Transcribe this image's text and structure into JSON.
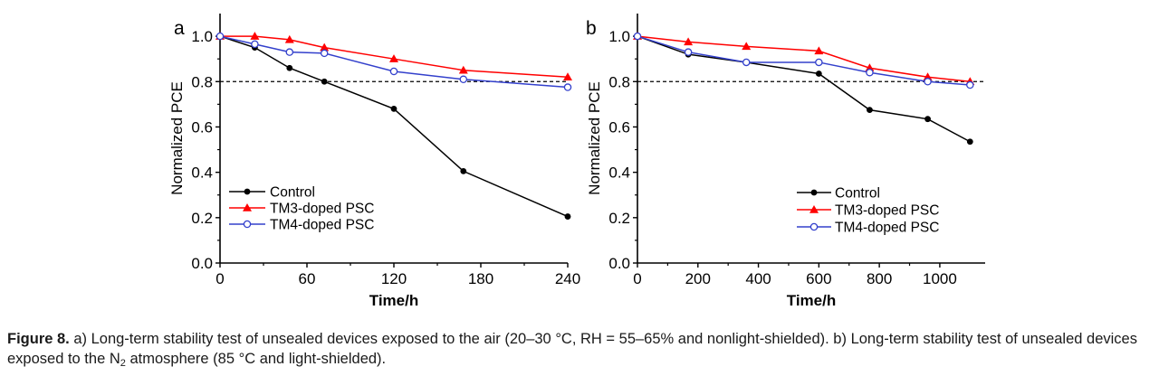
{
  "chart_data": [
    {
      "panel_label": "a",
      "type": "line",
      "xlabel": "Time/h",
      "ylabel": "Normalized PCE",
      "xlim": [
        0,
        240
      ],
      "ylim": [
        0.0,
        1.1
      ],
      "xticks": [
        0,
        60,
        120,
        180,
        240
      ],
      "yticks": [
        0.0,
        0.2,
        0.4,
        0.6,
        0.8,
        1.0
      ],
      "ytick_labels": [
        "0.0",
        "0.2",
        "0.4",
        "0.6",
        "0.8",
        "1.0"
      ],
      "reference_line": 0.8,
      "legend_position": "bottom-left",
      "series": [
        {
          "name": "Control",
          "color": "#000000",
          "marker": "filled-circle",
          "x": [
            0,
            24,
            48,
            72,
            120,
            168,
            240
          ],
          "y": [
            1.0,
            0.95,
            0.86,
            0.8,
            0.68,
            0.405,
            0.205
          ]
        },
        {
          "name": "TM3-doped PSC",
          "color": "#ff0000",
          "marker": "filled-triangle",
          "x": [
            0,
            24,
            48,
            72,
            120,
            168,
            240
          ],
          "y": [
            1.0,
            1.0,
            0.985,
            0.95,
            0.9,
            0.85,
            0.82
          ]
        },
        {
          "name": "TM4-doped PSC",
          "color": "#3340cc",
          "marker": "open-circle",
          "x": [
            0,
            24,
            48,
            72,
            120,
            168,
            240
          ],
          "y": [
            1.0,
            0.965,
            0.93,
            0.925,
            0.845,
            0.81,
            0.775
          ]
        }
      ]
    },
    {
      "panel_label": "b",
      "type": "line",
      "xlabel": "Time/h",
      "ylabel": "Normalized PCE",
      "xlim": [
        0,
        1150
      ],
      "ylim": [
        0.0,
        1.1
      ],
      "xticks": [
        0,
        200,
        400,
        600,
        800,
        1000
      ],
      "yticks": [
        0.0,
        0.2,
        0.4,
        0.6,
        0.8,
        1.0
      ],
      "ytick_labels": [
        "0.0",
        "0.2",
        "0.4",
        "0.6",
        "0.8",
        "1.0"
      ],
      "reference_line": 0.8,
      "legend_position": "bottom-right",
      "series": [
        {
          "name": "Control",
          "color": "#000000",
          "marker": "filled-circle",
          "x": [
            0,
            168,
            360,
            600,
            768,
            960,
            1100
          ],
          "y": [
            1.0,
            0.92,
            0.885,
            0.835,
            0.675,
            0.635,
            0.535
          ]
        },
        {
          "name": "TM3-doped PSC",
          "color": "#ff0000",
          "marker": "filled-triangle",
          "x": [
            0,
            168,
            360,
            600,
            768,
            960,
            1100
          ],
          "y": [
            1.0,
            0.975,
            0.955,
            0.935,
            0.86,
            0.82,
            0.8
          ]
        },
        {
          "name": "TM4-doped PSC",
          "color": "#3340cc",
          "marker": "open-circle",
          "x": [
            0,
            168,
            360,
            600,
            768,
            960,
            1100
          ],
          "y": [
            1.0,
            0.93,
            0.885,
            0.885,
            0.84,
            0.8,
            0.785
          ]
        }
      ]
    }
  ],
  "caption": {
    "label": "Figure 8.",
    "text_1": " a) Long-term stability test of unsealed devices exposed to the air (20–30 °C, RH = 55–65% and nonlight-shielded). b) Long-term stability test of unsealed devices exposed to the N",
    "subscript": "2",
    "text_2": " atmosphere (85 °C and light-shielded)."
  }
}
